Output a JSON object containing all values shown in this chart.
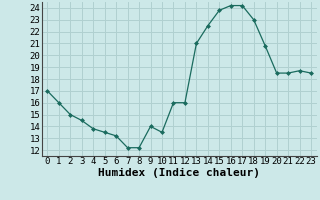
{
  "x": [
    0,
    1,
    2,
    3,
    4,
    5,
    6,
    7,
    8,
    9,
    10,
    11,
    12,
    13,
    14,
    15,
    16,
    17,
    18,
    19,
    20,
    21,
    22,
    23
  ],
  "y": [
    17,
    16,
    15,
    14.5,
    13.8,
    13.5,
    13.2,
    12.2,
    12.2,
    14,
    13.5,
    16,
    16,
    21,
    22.5,
    23.8,
    24.2,
    24.2,
    23,
    20.8,
    18.5,
    18.5,
    18.7,
    18.5
  ],
  "xlabel": "Humidex (Indice chaleur)",
  "xlim": [
    -0.5,
    23.5
  ],
  "ylim": [
    11.5,
    24.5
  ],
  "yticks": [
    12,
    13,
    14,
    15,
    16,
    17,
    18,
    19,
    20,
    21,
    22,
    23,
    24
  ],
  "xticks": [
    0,
    1,
    2,
    3,
    4,
    5,
    6,
    7,
    8,
    9,
    10,
    11,
    12,
    13,
    14,
    15,
    16,
    17,
    18,
    19,
    20,
    21,
    22,
    23
  ],
  "line_color": "#1a6b5e",
  "marker_color": "#1a6b5e",
  "bg_color": "#cce8e8",
  "grid_color": "#b0d0d0",
  "xlabel_fontsize": 8,
  "tick_fontsize": 6.5
}
